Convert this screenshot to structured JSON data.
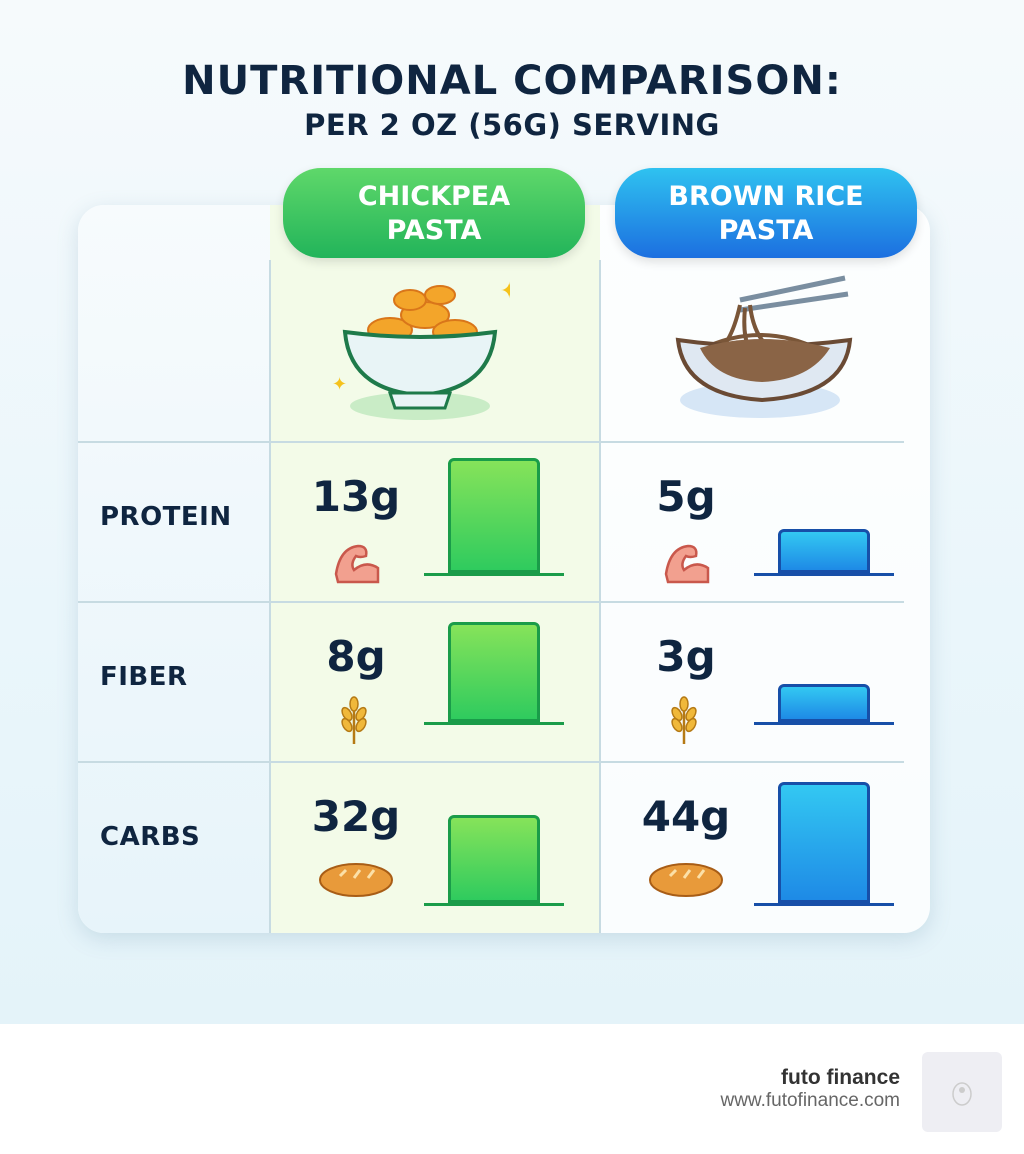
{
  "title": "NUTRITIONAL COMPARISON:",
  "subtitle": "PER 2 OZ (56G) SERVING",
  "columns": [
    {
      "label_line1": "CHICKPEA",
      "label_line2": "PASTA",
      "color": "#2fcb5e",
      "image": "pasta-bowl-icon"
    },
    {
      "label_line1": "BROWN RICE",
      "label_line2": "PASTA",
      "color": "#1e8ae6",
      "image": "noodle-bowl-icon"
    }
  ],
  "rows": [
    {
      "label": "PROTEIN",
      "icon": "flexed-arm-icon",
      "chickpea": "13g",
      "brown_rice": "5g"
    },
    {
      "label": "FIBER",
      "icon": "wheat-icon",
      "chickpea": "8g",
      "brown_rice": "3g"
    },
    {
      "label": "CARBS",
      "icon": "bread-icon",
      "chickpea": "32g",
      "brown_rice": "44g"
    }
  ],
  "chart_data": {
    "type": "bar",
    "categories": [
      "PROTEIN",
      "FIBER",
      "CARBS"
    ],
    "unit": "g",
    "series": [
      {
        "name": "CHICKPEA PASTA",
        "values": [
          13,
          8,
          32
        ],
        "color": "#2fcb5e"
      },
      {
        "name": "BROWN RICE PASTA",
        "values": [
          5,
          3,
          44
        ],
        "color": "#1e8ae6"
      }
    ]
  },
  "footer": {
    "brand": "futo finance",
    "url": "www.futofinance.com"
  }
}
